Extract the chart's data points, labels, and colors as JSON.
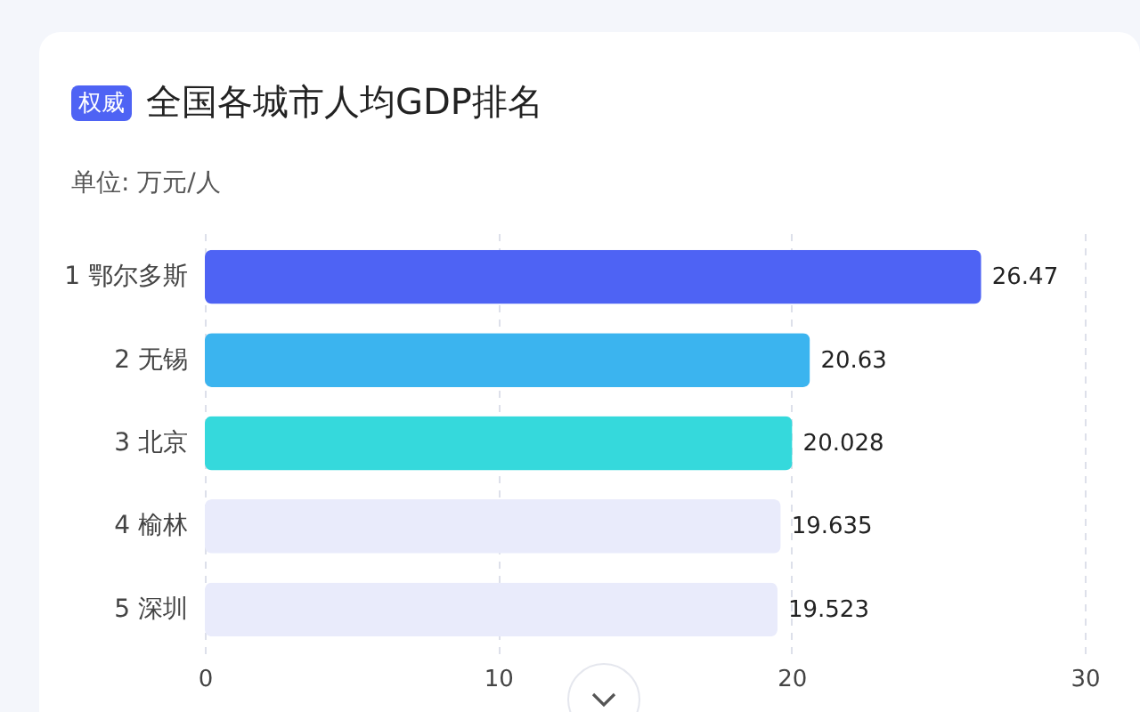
{
  "chart_data": {
    "type": "bar",
    "orientation": "horizontal",
    "title": "全国各城市人均GDP排名",
    "subtitle": "单位: 万元/人",
    "annotations": [
      "权威"
    ],
    "categories": [
      "1 鄂尔多斯",
      "2 无锡",
      "3 北京",
      "4 榆林",
      "5 深圳"
    ],
    "values": [
      26.47,
      20.63,
      20.028,
      19.635,
      19.523
    ],
    "colors": [
      "#4e63f4",
      "#3bb4ef",
      "#35d9dc",
      "#e9ebfb",
      "#e9ebfb"
    ],
    "xlim": [
      0,
      30
    ],
    "xticks": [
      0,
      10,
      20,
      30
    ],
    "grid": "x",
    "data_labels": true
  }
}
